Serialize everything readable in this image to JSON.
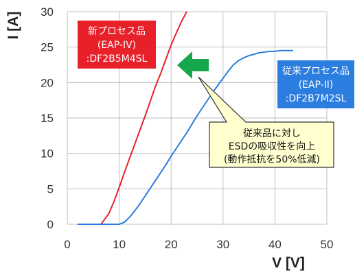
{
  "chart_data": {
    "type": "line",
    "xlabel": "V [V]",
    "ylabel": "I [A]",
    "xlim": [
      0,
      50
    ],
    "ylim": [
      0,
      30
    ],
    "xticks": [
      0,
      10,
      20,
      30,
      40,
      50
    ],
    "yticks": [
      0,
      5,
      10,
      15,
      20,
      25,
      30
    ],
    "grid": true,
    "series": [
      {
        "name": "新プロセス品 (EAP-IV) :DF2B5M4SL",
        "color": "#e8202a",
        "x": [
          2,
          5,
          6.5,
          7,
          8,
          9,
          10,
          11,
          12,
          13,
          14,
          15,
          16,
          17,
          18,
          19,
          20,
          21,
          22,
          23
        ],
        "y": [
          0,
          0,
          0,
          0.5,
          1.5,
          3.2,
          5.2,
          7.3,
          9.3,
          11.3,
          13.3,
          15.3,
          17.4,
          19.5,
          21.3,
          23.3,
          25.3,
          27,
          28.6,
          30
        ]
      },
      {
        "name": "従来プロセス品 (EAP-II) :DF2B7M2SL",
        "color": "#2b7de0",
        "x": [
          2,
          8,
          10,
          11,
          12,
          13,
          14,
          15,
          16,
          17,
          18,
          19,
          20,
          21,
          22,
          23,
          24,
          25,
          26,
          27,
          28,
          29,
          30,
          31,
          32,
          33,
          34,
          35,
          36,
          37,
          38,
          39,
          40,
          41,
          42,
          43.5
        ],
        "y": [
          0,
          0,
          0,
          0.3,
          1,
          1.9,
          2.9,
          4,
          5.1,
          6.2,
          7.3,
          8.4,
          9.6,
          10.7,
          11.8,
          12.9,
          14.1,
          15.3,
          16.4,
          17.5,
          18.6,
          19.6,
          20.6,
          21.6,
          22.5,
          23.1,
          23.5,
          23.8,
          24,
          24.2,
          24.3,
          24.4,
          24.4,
          24.5,
          24.5,
          24.5
        ]
      }
    ],
    "labels": {
      "new_box": [
        "新プロセス品",
        "(EAP-IV)",
        ":DF2B5M4SL"
      ],
      "old_box": [
        "従来プロセス品",
        "(EAP-II)",
        ":DF2B7M2SL"
      ],
      "callout": [
        "従来品に対し",
        "ESDの吸収性を向上",
        "(動作抵抗を50%低減)"
      ]
    },
    "colors": {
      "new": "#e8202a",
      "old": "#2b7de0",
      "arrow": "#16a64b",
      "callout_fill": "#ffffd0",
      "grid": "#bfbfbf"
    }
  }
}
